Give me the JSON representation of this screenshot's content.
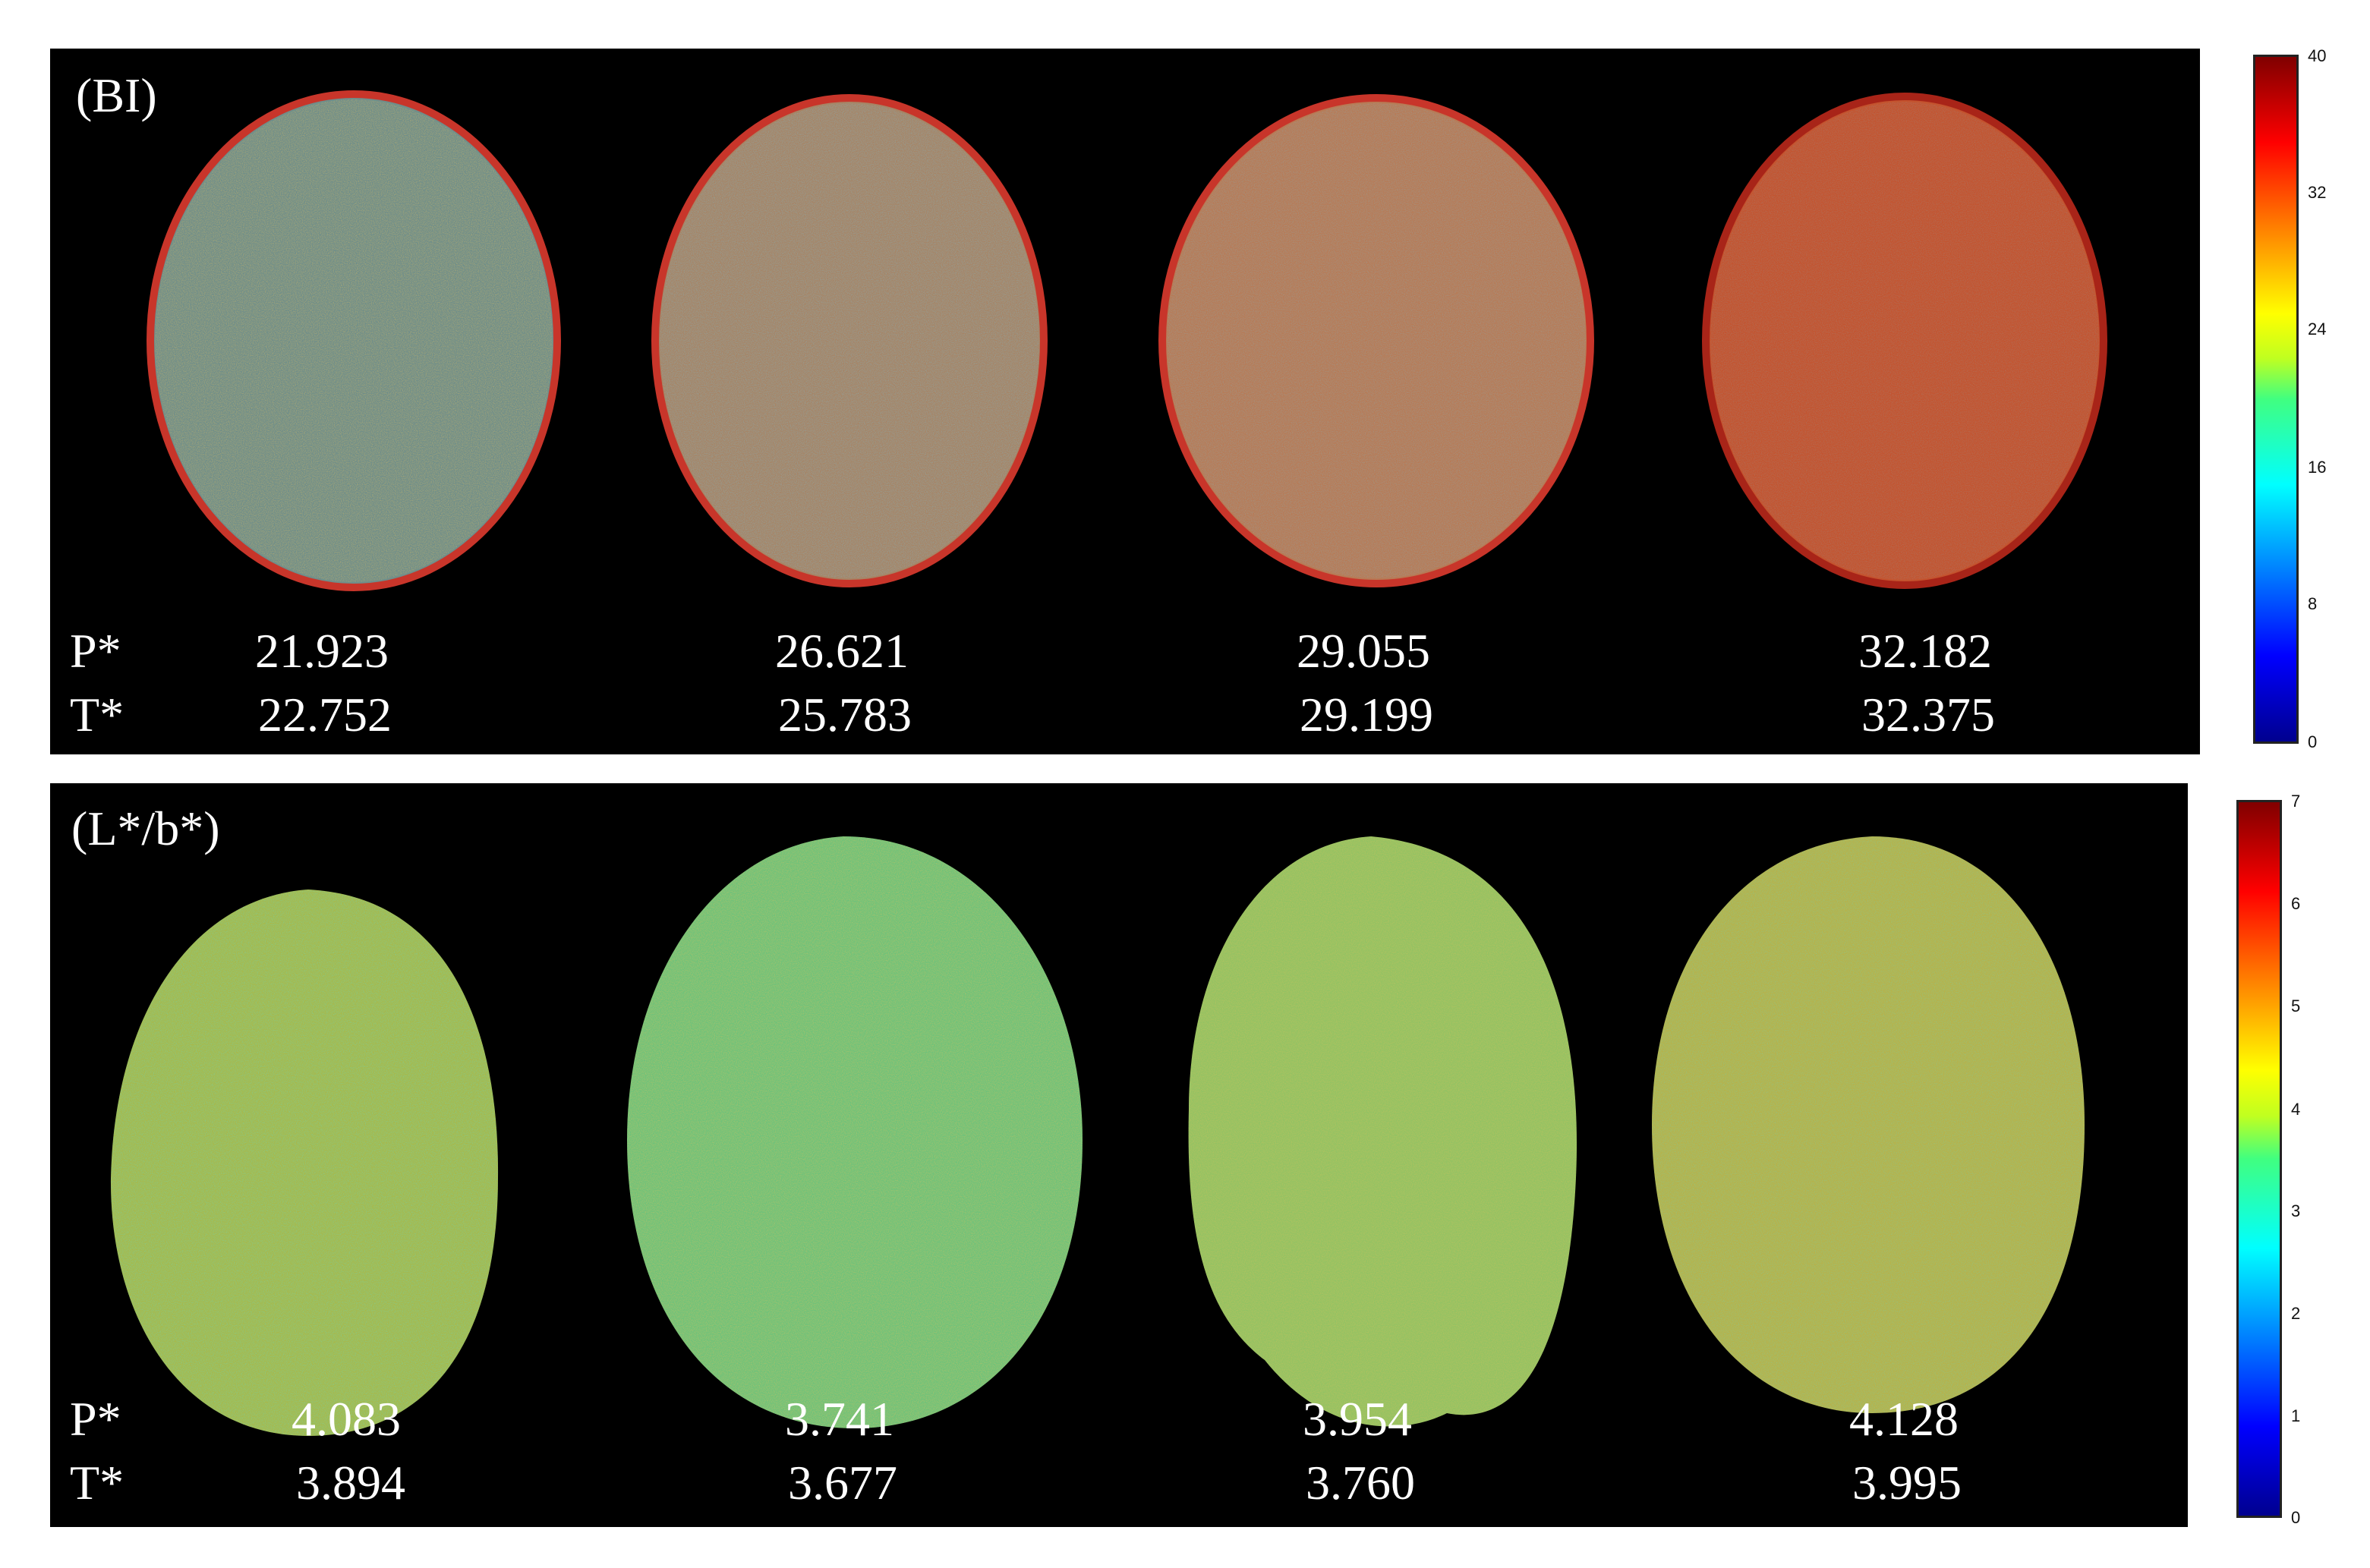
{
  "panels": [
    {
      "label": "(BI)",
      "p_label": "P*",
      "t_label": "T*",
      "p_values": [
        "21.923",
        "26.621",
        "29.055",
        "32.182"
      ],
      "t_values": [
        "22.752",
        "25.783",
        "29.199",
        "32.375"
      ],
      "colorbar": {
        "min": 0,
        "max": 40,
        "ticks": [
          "40",
          "32",
          "24",
          "16",
          "8",
          "0"
        ]
      }
    },
    {
      "label": "(L*/b*)",
      "p_label": "P*",
      "t_label": "T*",
      "p_values": [
        "4.083",
        "3.741",
        "3.954",
        "4.128"
      ],
      "t_values": [
        "3.894",
        "3.677",
        "3.760",
        "3.995"
      ],
      "colorbar": {
        "min": 0,
        "max": 7,
        "ticks": [
          "7",
          "6",
          "5",
          "4",
          "3",
          "2",
          "1",
          "0"
        ]
      }
    }
  ],
  "colormap": "jet",
  "colors": {
    "panel_background": "#000000",
    "text": "#ffffff"
  }
}
